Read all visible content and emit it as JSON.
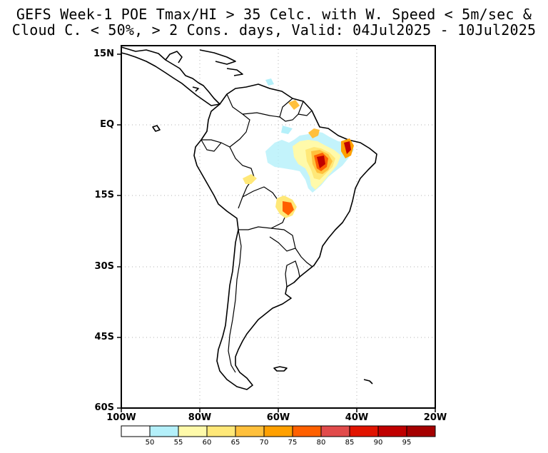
{
  "title": {
    "line1": "GEFS Week-1 POE Tmax/HI > 35 Celc. with W. Speed < 5m/sec &",
    "line2": "Cloud C. < 50%, > 2 Cons. days, Valid: 04Jul2025 - 10Jul2025"
  },
  "axes": {
    "lat_labels": [
      "15N",
      "EQ",
      "15S",
      "30S",
      "45S",
      "60S"
    ],
    "lon_labels": [
      "100W",
      "80W",
      "60W",
      "40W",
      "20W"
    ]
  },
  "colorbar": {
    "labels": [
      "50",
      "55",
      "60",
      "65",
      "70",
      "75",
      "80",
      "85",
      "90",
      "95"
    ],
    "colors": [
      "#ffffff",
      "#b4f0fa",
      "#fffaaa",
      "#ffe878",
      "#ffc03c",
      "#ffa000",
      "#ff6000",
      "#e14b4b",
      "#e11400",
      "#c00000",
      "#a50000"
    ]
  }
}
